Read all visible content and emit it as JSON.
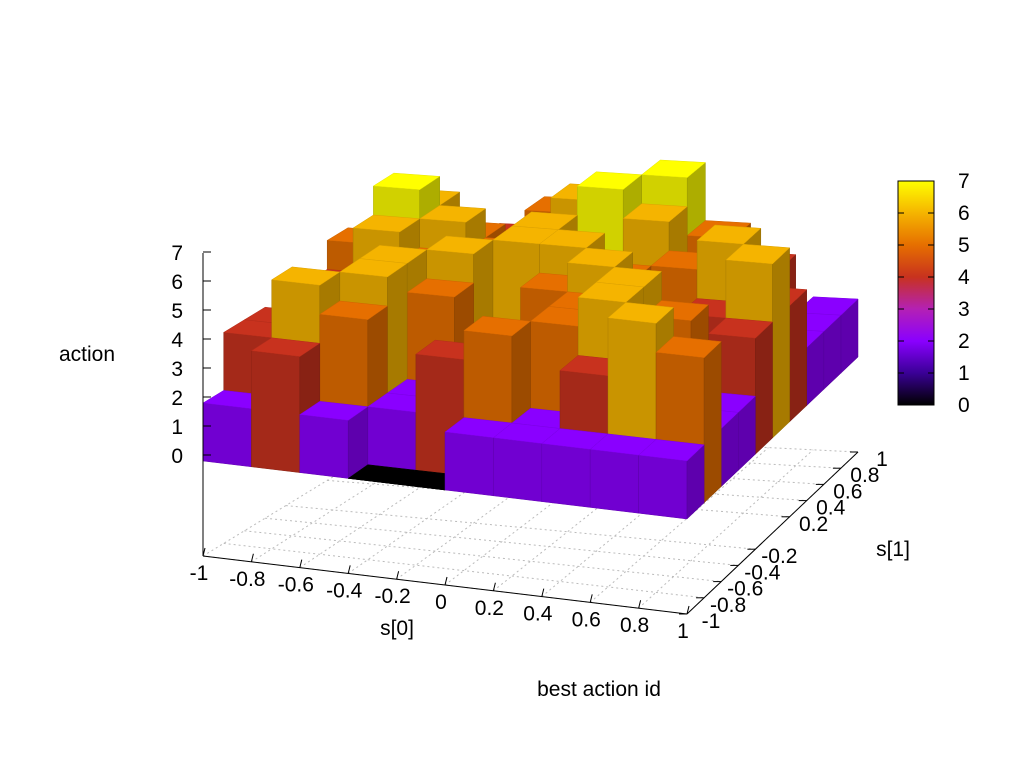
{
  "chart_data": {
    "type": "surface3d",
    "title": "best action id",
    "xlabel": "s[0]",
    "ylabel": "s[1]",
    "zlabel": "action",
    "xlim": [
      -1,
      1
    ],
    "ylim": [
      -1,
      1
    ],
    "zlim": [
      0,
      7
    ],
    "x_ticks": [
      "-1",
      "-0.8",
      "-0.6",
      "-0.4",
      "-0.2",
      "0",
      "0.2",
      "0.4",
      "0.6",
      "0.8",
      "1"
    ],
    "y_ticks": [
      "-1",
      "-0.8",
      "-0.6",
      "-0.4",
      "-0.2",
      "0.2",
      "0.4",
      "0.6",
      "0.8",
      "1"
    ],
    "y_tick_values": [
      -1,
      -0.8,
      -0.6,
      -0.4,
      -0.2,
      0.2,
      0.4,
      0.6,
      0.8,
      1
    ],
    "z_ticks": [
      "0",
      "1",
      "2",
      "3",
      "4",
      "5",
      "6",
      "7"
    ],
    "colorbar": {
      "range": [
        0,
        7
      ],
      "ticks": [
        "0",
        "1",
        "2",
        "3",
        "4",
        "5",
        "6",
        "7"
      ],
      "colormap": [
        "#000000",
        "#3a0096",
        "#8a00ff",
        "#b421b4",
        "#c8321e",
        "#e66f00",
        "#f5b400",
        "#ffff00"
      ]
    },
    "grid": true,
    "x": [
      -0.9,
      -0.7,
      -0.5,
      -0.3,
      -0.1,
      0.1,
      0.3,
      0.5,
      0.7,
      0.9
    ],
    "y": [
      -0.9,
      -0.7,
      -0.5,
      -0.3,
      -0.1,
      0.1,
      0.3,
      0.5,
      0.7,
      0.9
    ],
    "z": [
      [
        2,
        4,
        2,
        0,
        0,
        2,
        2,
        2,
        2,
        2
      ],
      [
        4,
        6,
        5,
        2,
        4,
        5,
        2,
        4,
        6,
        5
      ],
      [
        4,
        5,
        6,
        2,
        2,
        4,
        5,
        6,
        4,
        2
      ],
      [
        2,
        4,
        6,
        5,
        2,
        3,
        5,
        6,
        5,
        2
      ],
      [
        2,
        2,
        4,
        6,
        2,
        5,
        6,
        4,
        2,
        4
      ],
      [
        4,
        6,
        5,
        4,
        6,
        6,
        5,
        2,
        4,
        6
      ],
      [
        5,
        7,
        6,
        5,
        6,
        2,
        4,
        5,
        6,
        4
      ],
      [
        4,
        6,
        5,
        2,
        5,
        7,
        6,
        4,
        2,
        2
      ],
      [
        2,
        4,
        2,
        4,
        6,
        5,
        7,
        5,
        4,
        2
      ],
      [
        2,
        2,
        4,
        5,
        4,
        2,
        2,
        2,
        0,
        2
      ]
    ]
  }
}
